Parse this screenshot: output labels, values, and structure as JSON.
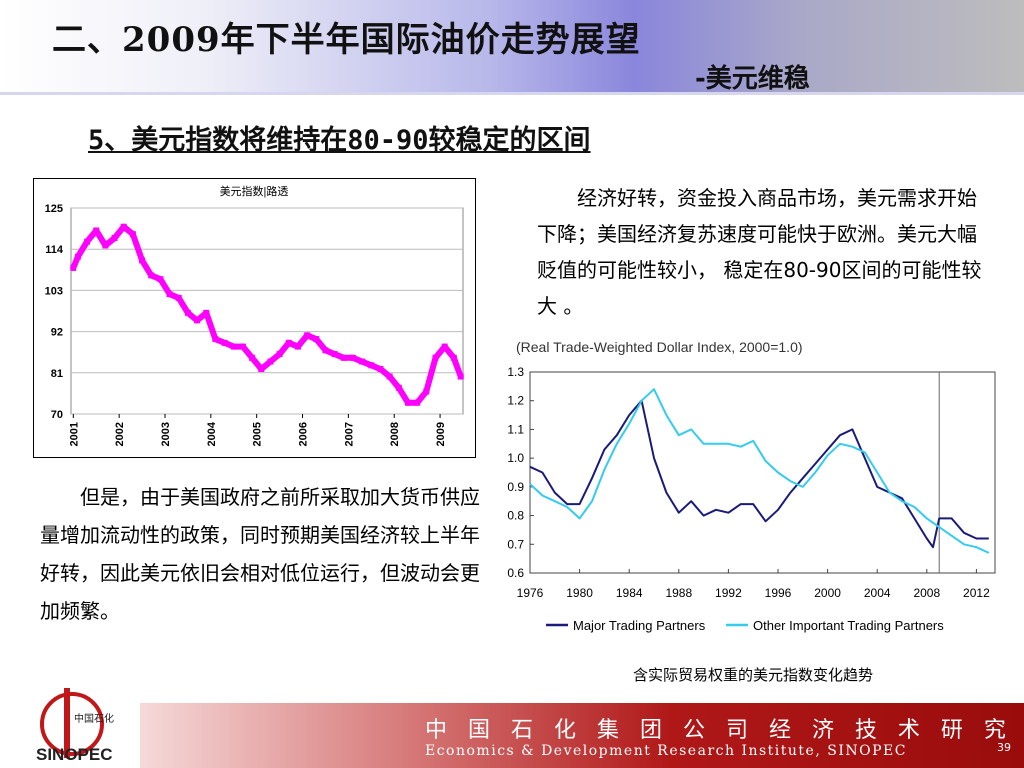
{
  "slide": {
    "title": "二、2009年下半年国际油价走势展望",
    "subtitle": "-美元维稳",
    "heading": "5、美元指数将维持在80-90较稳定的区间",
    "para1": "经济好转，资金投入商品市场，美元需求开始下降；美国经济复苏速度可能快于欧洲。美元大幅贬值的可能性较小， 稳定在80-90区间的可能性较大 。",
    "para2": "但是，由于美国政府之前所采取加大货币供应量增加流动性的政策，同时预期美国经济较上半年好转，因此美元依旧会相对低位运行，但波动会更加频繁。",
    "caption": "含实际贸易权重的美元指数变化趋势",
    "page_number": "39"
  },
  "footer": {
    "org_cn": "中 国 石 化 集 团 公 司 经 济 技 术 研 究 院",
    "org_en": "Economics & Development Research Institute, SINOPEC"
  },
  "logo": {
    "text": "SINOPEC",
    "chinese": "中国石化"
  },
  "colors": {
    "magenta_series": "#ff00ff",
    "major_partners": "#1a1a7a",
    "other_partners": "#33ccee",
    "footer_red": "#a31010"
  },
  "chart_data": [
    {
      "type": "line",
      "title": "美元指数|路透",
      "xlabel": "",
      "ylabel": "",
      "ylim": [
        70,
        125
      ],
      "yticks": [
        "70",
        "81",
        "92",
        "103",
        "114",
        "125"
      ],
      "xticks": [
        "2001",
        "2002",
        "2003",
        "2004",
        "2005",
        "2006",
        "2007",
        "2008",
        "2009"
      ],
      "grid": true,
      "series": [
        {
          "name": "",
          "x": [
            2001.0,
            2001.1,
            2001.3,
            2001.5,
            2001.7,
            2001.9,
            2002.1,
            2002.3,
            2002.5,
            2002.7,
            2002.9,
            2003.1,
            2003.3,
            2003.5,
            2003.7,
            2003.9,
            2004.1,
            2004.3,
            2004.5,
            2004.7,
            2004.9,
            2005.1,
            2005.3,
            2005.5,
            2005.7,
            2005.9,
            2006.1,
            2006.3,
            2006.5,
            2006.7,
            2006.9,
            2007.1,
            2007.3,
            2007.5,
            2007.7,
            2007.9,
            2008.1,
            2008.3,
            2008.5,
            2008.7,
            2008.9,
            2009.1,
            2009.3,
            2009.45
          ],
          "values": [
            109,
            112,
            116,
            119,
            115,
            117,
            120,
            118,
            111,
            107,
            106,
            102,
            101,
            97,
            95,
            97,
            90,
            89,
            88,
            88,
            85,
            82,
            84,
            86,
            89,
            88,
            91,
            90,
            87,
            86,
            85,
            85,
            84,
            83,
            82,
            80,
            77,
            73,
            73,
            76,
            85,
            88,
            85,
            80
          ]
        }
      ]
    },
    {
      "type": "line",
      "title": "(Real Trade-Weighted Dollar Index, 2000=1.0)",
      "xlabel": "",
      "ylabel": "",
      "ylim": [
        0.6,
        1.3
      ],
      "yticks": [
        "0.6",
        "0.7",
        "0.8",
        "0.9",
        "1.0",
        "1.1",
        "1.2",
        "1.3"
      ],
      "xticks": [
        "1976",
        "1980",
        "1984",
        "1988",
        "1992",
        "1996",
        "2000",
        "2004",
        "2008",
        "2012"
      ],
      "legend": "bottom",
      "vertical_marker_x": 2009,
      "series": [
        {
          "name": "Major Trading Partners",
          "x": [
            1976,
            1977,
            1978,
            1979,
            1980,
            1981,
            1982,
            1983,
            1984,
            1985,
            1986,
            1987,
            1988,
            1989,
            1990,
            1991,
            1992,
            1993,
            1994,
            1995,
            1996,
            1997,
            1998,
            1999,
            2000,
            2001,
            2002,
            2003,
            2004,
            2005,
            2006,
            2007,
            2008,
            2008.5,
            2009,
            2010,
            2011,
            2012,
            2013
          ],
          "values": [
            0.97,
            0.95,
            0.88,
            0.84,
            0.84,
            0.93,
            1.03,
            1.08,
            1.15,
            1.2,
            1.0,
            0.88,
            0.81,
            0.85,
            0.8,
            0.82,
            0.81,
            0.84,
            0.84,
            0.78,
            0.82,
            0.88,
            0.93,
            0.98,
            1.03,
            1.08,
            1.1,
            1.0,
            0.9,
            0.88,
            0.86,
            0.79,
            0.72,
            0.69,
            0.79,
            0.79,
            0.74,
            0.72,
            0.72
          ]
        },
        {
          "name": "Other Important Trading Partners",
          "x": [
            1976,
            1977,
            1978,
            1979,
            1980,
            1981,
            1982,
            1983,
            1984,
            1985,
            1986,
            1987,
            1988,
            1989,
            1990,
            1991,
            1992,
            1993,
            1994,
            1995,
            1996,
            1997,
            1998,
            1999,
            2000,
            2001,
            2002,
            2003,
            2004,
            2005,
            2006,
            2007,
            2008,
            2009,
            2010,
            2011,
            2012,
            2013
          ],
          "values": [
            0.91,
            0.87,
            0.85,
            0.83,
            0.79,
            0.85,
            0.96,
            1.05,
            1.12,
            1.2,
            1.24,
            1.15,
            1.08,
            1.1,
            1.05,
            1.05,
            1.05,
            1.04,
            1.06,
            0.99,
            0.95,
            0.92,
            0.9,
            0.95,
            1.01,
            1.05,
            1.04,
            1.02,
            0.95,
            0.88,
            0.85,
            0.83,
            0.79,
            0.76,
            0.73,
            0.7,
            0.69,
            0.67
          ]
        }
      ]
    }
  ]
}
